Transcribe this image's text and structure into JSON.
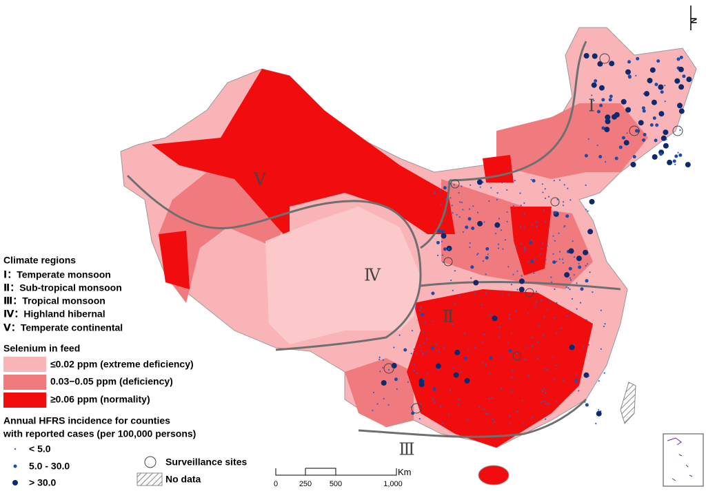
{
  "legend": {
    "climate": {
      "title": "Climate regions",
      "items": [
        "Ⅰ：Temperate monsoon",
        "Ⅱ：Sub-tropical monsoon",
        "Ⅲ：Tropical monsoon",
        "Ⅳ：Highland hibernal",
        "Ⅴ：Temperate continental"
      ]
    },
    "selenium": {
      "title": "Selenium in feed",
      "items": [
        "≤0.02 ppm (extreme deficiency)",
        "0.03−0.05 ppm (deficiency)",
        "≥0.06 ppm (normality)"
      ]
    },
    "incidence": {
      "title": [
        "Annual HFRS incidence for counties",
        "with reported cases (per 100,000 persons)"
      ],
      "items": [
        "< 5.0",
        "5.0 - 30.0",
        "> 30.0"
      ]
    },
    "surveillance": "Surveillance sites",
    "no_data": "No data"
  },
  "scale": {
    "labels": [
      "0",
      "250",
      "500",
      "1,000"
    ],
    "unit": "Km"
  },
  "regions": [
    "Ⅰ",
    "Ⅱ",
    "Ⅲ",
    "Ⅳ",
    "Ⅴ"
  ],
  "north": "N"
}
